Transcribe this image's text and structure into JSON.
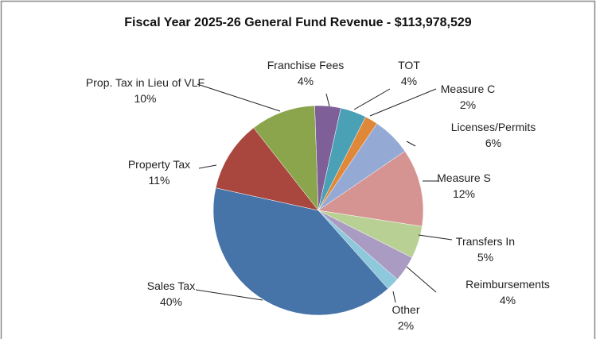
{
  "chart_data": {
    "type": "pie",
    "title": "Fiscal Year 2025-26 General Fund Revenue  - $113,978,529",
    "categories": [
      "Franchise Fees",
      "TOT",
      "Measure C",
      "Licenses/Permits",
      "Measure S",
      "Transfers In",
      "Reimbursements",
      "Other",
      "Sales Tax",
      "Property Tax",
      "Prop. Tax in Lieu of VLF"
    ],
    "values": [
      4,
      4,
      2,
      6,
      12,
      5,
      4,
      2,
      40,
      11,
      10
    ],
    "value_labels": [
      "4%",
      "4%",
      "2%",
      "6%",
      "12%",
      "5%",
      "4%",
      "2%",
      "40%",
      "11%",
      "10%"
    ],
    "colors": [
      "#7f5f98",
      "#4aa0b5",
      "#e0883a",
      "#94a9d4",
      "#d59491",
      "#b9d095",
      "#a99bc2",
      "#8ec8dc",
      "#4673a8",
      "#a9473f",
      "#8aa54b"
    ]
  }
}
